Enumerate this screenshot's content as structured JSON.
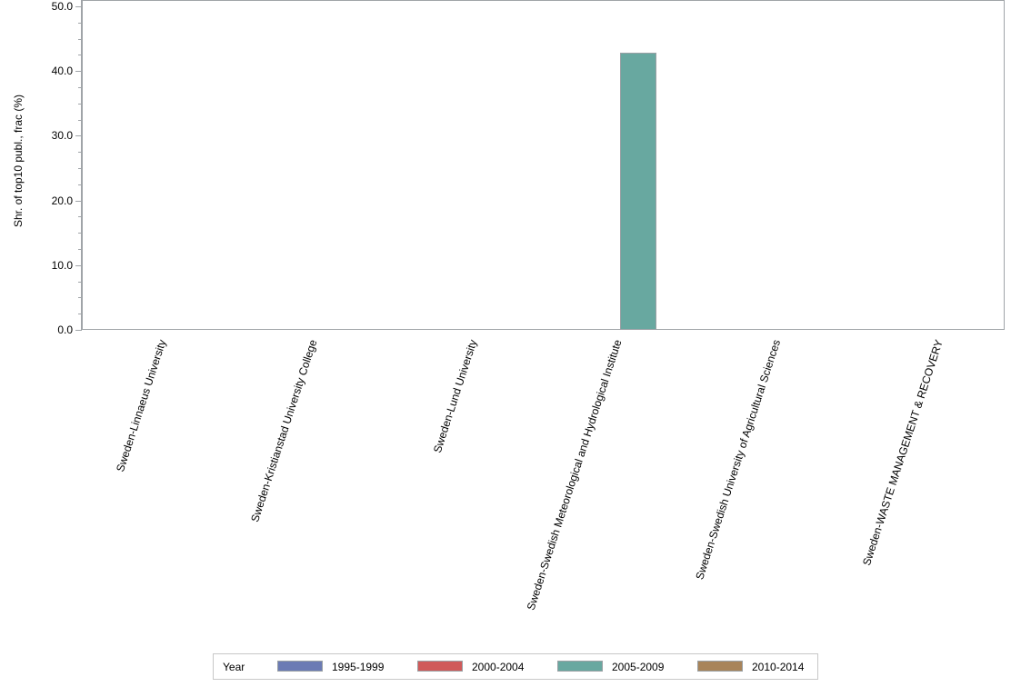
{
  "chart_data": {
    "type": "bar",
    "title": "",
    "xlabel": "",
    "ylabel": "Shr. of top10 publ., frac (%)",
    "ylim": [
      0,
      50
    ],
    "yticks": [
      "0.0",
      "10.0",
      "20.0",
      "30.0",
      "40.0",
      "50.0"
    ],
    "grid": false,
    "legend_position": "bottom",
    "legend_title": "Year",
    "categories": [
      "Sweden-Linnaeus University",
      "Sweden-Kristianstad University College",
      "Sweden-Lund University",
      "Sweden-Swedish Meteorological and Hydrological Institute",
      "Sweden-Swedish University of Agricultural Sciences",
      "Sweden-WASTE MANAGEMENT & RECOVERY"
    ],
    "series": [
      {
        "name": "1995-1999",
        "color": "#6b7bb4",
        "values": [
          0,
          0,
          0,
          0,
          0,
          0
        ]
      },
      {
        "name": "2000-2004",
        "color": "#d05a5a",
        "values": [
          0,
          0,
          0,
          0,
          0,
          0
        ]
      },
      {
        "name": "2005-2009",
        "color": "#68a8a0",
        "values": [
          0,
          0,
          0,
          42.8,
          0,
          0
        ]
      },
      {
        "name": "2010-2014",
        "color": "#a8845a",
        "values": [
          0,
          0,
          0,
          0,
          0,
          0
        ]
      }
    ]
  }
}
